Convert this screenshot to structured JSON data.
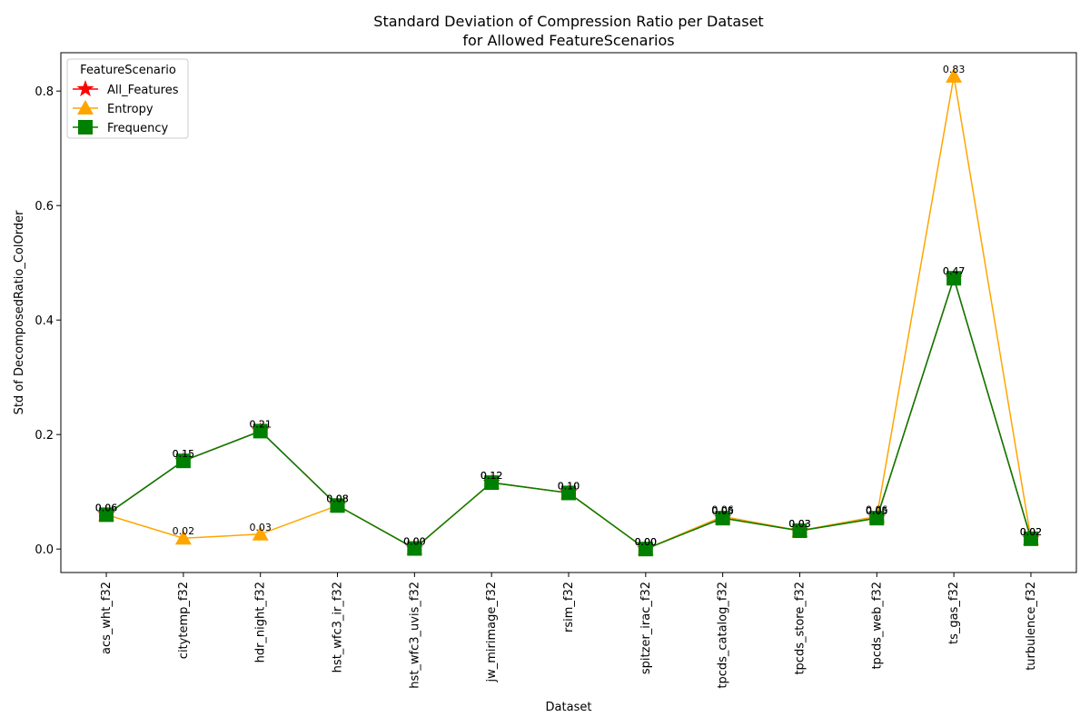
{
  "chart_data": {
    "type": "line",
    "title": "Standard Deviation of Compression Ratio per Dataset",
    "subtitle": "for Allowed FeatureScenarios",
    "x_label": "Dataset",
    "y_label": "Std of DecomposedRatio_ColOrder",
    "legend_title": "FeatureScenario",
    "legend": "upper left",
    "grid": false,
    "categories": [
      "acs_wht_f32",
      "citytemp_f32",
      "hdr_night_f32",
      "hst_wfc3_ir_f32",
      "hst_wfc3_uvis_f32",
      "jw_mirimage_f32",
      "rsim_f32",
      "spitzer_irac_f32",
      "tpcds_catalog_f32",
      "tpcds_store_f32",
      "tpcds_web_f32",
      "ts_gas_f32",
      "turbulence_f32"
    ],
    "ylim": [
      -0.041,
      0.867
    ],
    "yticks": [
      {
        "value": 0,
        "label": "0.0"
      },
      0.2,
      0.4,
      0.6,
      0.8
    ],
    "series": [
      {
        "name": "All_Features",
        "color": "#ff0000",
        "marker": "star",
        "values": [
          0.06,
          0.154,
          0.206,
          0.076,
          0.001,
          0.116,
          0.098,
          0.0,
          0.054,
          0.032,
          0.054,
          0.473,
          0.018
        ],
        "value_labels": [
          "0.06",
          "0.15",
          "0.21",
          "0.08",
          "0.00",
          "0.12",
          "0.10",
          "0.00",
          "0.05",
          "0.03",
          "0.05",
          "0.47",
          "0.02"
        ]
      },
      {
        "name": "Entropy",
        "color": "#ffa500",
        "marker": "triangle",
        "values": [
          0.06,
          0.019,
          0.026,
          0.076,
          0.001,
          0.116,
          0.098,
          0.0,
          0.057,
          0.032,
          0.057,
          0.826,
          0.018
        ],
        "value_labels": [
          "0.06",
          "0.02",
          "0.03",
          "0.08",
          "0.00",
          "0.12",
          "0.10",
          "0.00",
          "0.06",
          "0.03",
          "0.06",
          "0.83",
          "0.02"
        ]
      },
      {
        "name": "Frequency",
        "color": "#008000",
        "marker": "square",
        "values": [
          0.06,
          0.154,
          0.206,
          0.076,
          0.001,
          0.116,
          0.098,
          0.0,
          0.054,
          0.032,
          0.054,
          0.473,
          0.018
        ],
        "value_labels": [
          "0.06",
          "0.15",
          "0.21",
          "0.08",
          "0.00",
          "0.12",
          "0.10",
          "0.00",
          "0.05",
          "0.03",
          "0.05",
          "0.47",
          "0.02"
        ]
      }
    ]
  }
}
